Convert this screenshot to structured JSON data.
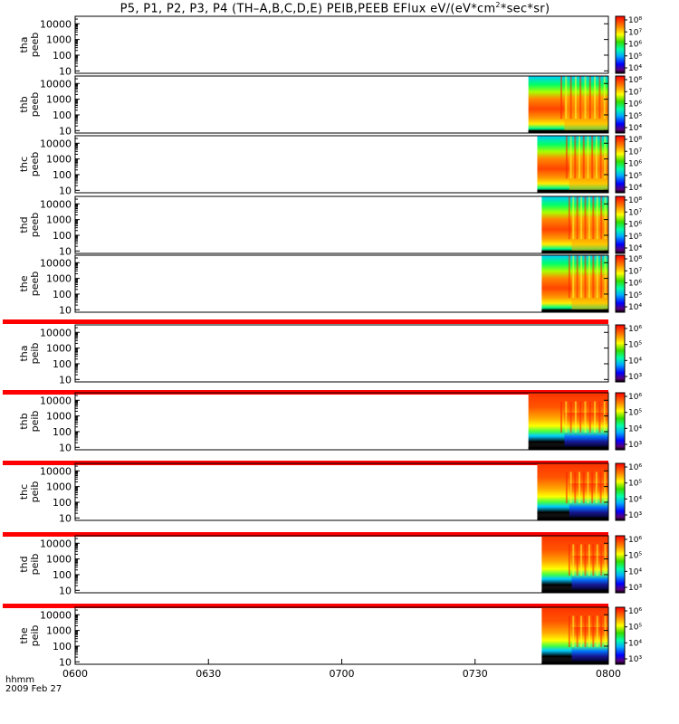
{
  "title": {
    "text_before_sup": "P5, P1, P2, P3, P4 (TH–A,B,C,D,E) PEIB,PEEB EFlux eV/(eV*cm",
    "sup": "2",
    "text_after_sup": "*sec*sr)"
  },
  "time_axis": {
    "label": "hhmm",
    "date": "2009 Feb 27",
    "ticks": [
      "0600",
      "0630",
      "0700",
      "0730",
      "0800"
    ],
    "range_minutes": [
      0,
      120
    ]
  },
  "colors": {
    "separator": "#ff0000",
    "frame": "#000000"
  },
  "chart_data": [
    {
      "type": "heatmap",
      "probe": "tha",
      "product": "peeb",
      "ylabel": [
        "tha",
        "peeb"
      ],
      "yticks": [
        "10000",
        "1000",
        "100",
        "10"
      ],
      "yscale": "log",
      "ylim": [
        7,
        30000
      ],
      "data_start_minute": null,
      "colorbar_ticks": [
        "10⁸",
        "10⁷",
        "10⁶",
        "10⁵",
        "10⁴"
      ]
    },
    {
      "type": "heatmap",
      "probe": "thb",
      "product": "peeb",
      "ylabel": [
        "thb",
        "peeb"
      ],
      "yticks": [
        "10000",
        "1000",
        "100",
        "10"
      ],
      "yscale": "log",
      "ylim": [
        7,
        30000
      ],
      "data_start_minute": 102,
      "colorbar_ticks": [
        "10⁸",
        "10⁷",
        "10⁶",
        "10⁵",
        "10⁴"
      ]
    },
    {
      "type": "heatmap",
      "probe": "thc",
      "product": "peeb",
      "ylabel": [
        "thc",
        "peeb"
      ],
      "yticks": [
        "10000",
        "1000",
        "100",
        "10"
      ],
      "yscale": "log",
      "ylim": [
        7,
        30000
      ],
      "data_start_minute": 104,
      "colorbar_ticks": [
        "10⁸",
        "10⁷",
        "10⁶",
        "10⁵",
        "10⁴"
      ]
    },
    {
      "type": "heatmap",
      "probe": "thd",
      "product": "peeb",
      "ylabel": [
        "thd",
        "peeb"
      ],
      "yticks": [
        "10000",
        "1000",
        "100",
        "10"
      ],
      "yscale": "log",
      "ylim": [
        7,
        30000
      ],
      "data_start_minute": 105,
      "colorbar_ticks": [
        "10⁸",
        "10⁷",
        "10⁶",
        "10⁵",
        "10⁴"
      ]
    },
    {
      "type": "heatmap",
      "probe": "the",
      "product": "peeb",
      "ylabel": [
        "the",
        "peeb"
      ],
      "yticks": [
        "10000",
        "1000",
        "100",
        "10"
      ],
      "yscale": "log",
      "ylim": [
        7,
        30000
      ],
      "data_start_minute": 105,
      "colorbar_ticks": [
        "10⁸",
        "10⁷",
        "10⁶",
        "10⁵",
        "10⁴"
      ]
    },
    {
      "type": "heatmap",
      "probe": "tha",
      "product": "peib",
      "ylabel": [
        "tha",
        "peib"
      ],
      "yticks": [
        "10000",
        "1000",
        "100",
        "10"
      ],
      "yscale": "log",
      "ylim": [
        7,
        30000
      ],
      "data_start_minute": null,
      "colorbar_ticks": [
        "10⁶",
        "10⁵",
        "10⁴",
        "10³"
      ]
    },
    {
      "type": "heatmap",
      "probe": "thb",
      "product": "peib",
      "ylabel": [
        "thb",
        "peib"
      ],
      "yticks": [
        "10000",
        "1000",
        "100",
        "10"
      ],
      "yscale": "log",
      "ylim": [
        7,
        30000
      ],
      "data_start_minute": 102,
      "colorbar_ticks": [
        "10⁶",
        "10⁵",
        "10⁴",
        "10³"
      ]
    },
    {
      "type": "heatmap",
      "probe": "thc",
      "product": "peib",
      "ylabel": [
        "thc",
        "peib"
      ],
      "yticks": [
        "10000",
        "1000",
        "100",
        "10"
      ],
      "yscale": "log",
      "ylim": [
        7,
        30000
      ],
      "data_start_minute": 104,
      "colorbar_ticks": [
        "10⁶",
        "10⁵",
        "10⁴",
        "10³"
      ]
    },
    {
      "type": "heatmap",
      "probe": "thd",
      "product": "peib",
      "ylabel": [
        "thd",
        "peib"
      ],
      "yticks": [
        "10000",
        "1000",
        "100",
        "10"
      ],
      "yscale": "log",
      "ylim": [
        7,
        30000
      ],
      "data_start_minute": 105,
      "colorbar_ticks": [
        "10⁶",
        "10⁵",
        "10⁴",
        "10³"
      ]
    },
    {
      "type": "heatmap",
      "probe": "the",
      "product": "peib",
      "ylabel": [
        "the",
        "peib"
      ],
      "yticks": [
        "10000",
        "1000",
        "100",
        "10"
      ],
      "yscale": "log",
      "ylim": [
        7,
        30000
      ],
      "data_start_minute": 105,
      "colorbar_ticks": [
        "10⁶",
        "10⁵",
        "10⁴",
        "10³"
      ]
    }
  ]
}
